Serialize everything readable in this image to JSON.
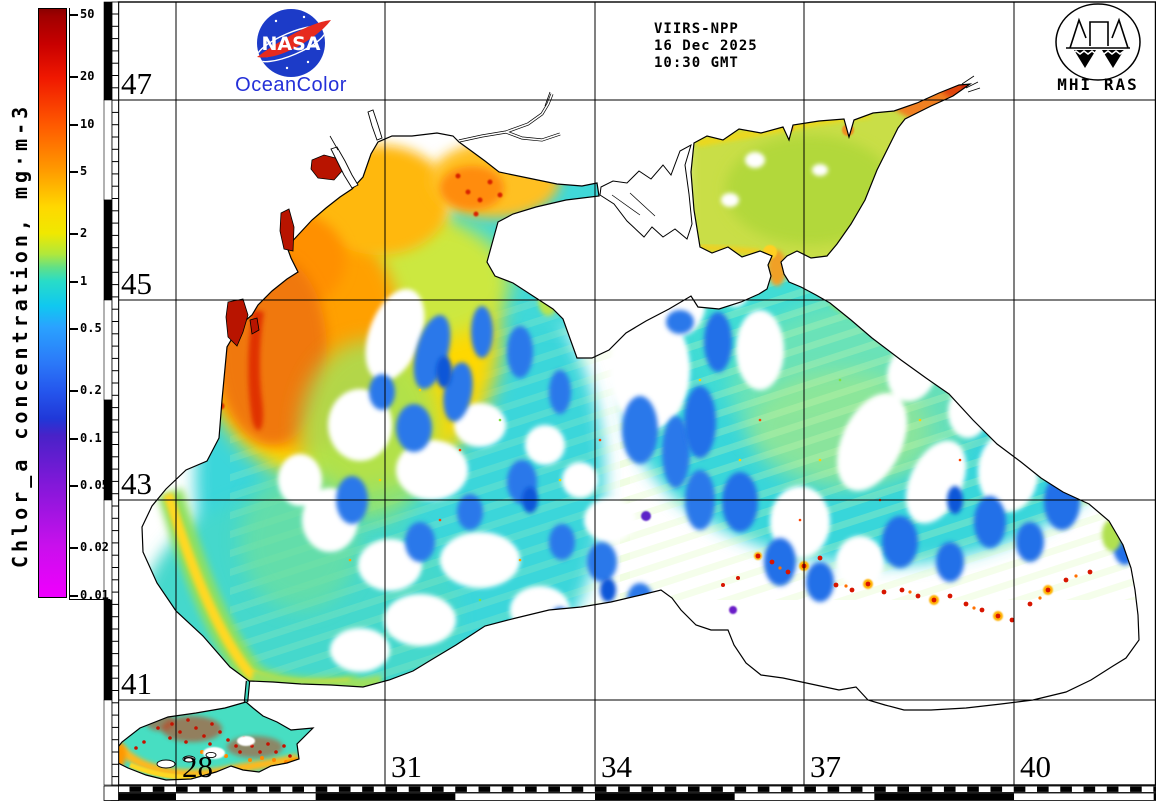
{
  "header": {
    "sensor": "VIIRS-NPP",
    "date": "16 Dec 2025",
    "time": "10:30 GMT"
  },
  "branding": {
    "nasa_text": "NASA",
    "oceancolor_label": "OceanColor",
    "mhi_label": "MHI RAS"
  },
  "colorbar": {
    "title": "Chlor_a concentration, mg·m-3",
    "units": "mg·m-3",
    "tick_labels": [
      "50",
      "20",
      "10",
      "5",
      "2",
      "1",
      "0.5",
      "0.2",
      "0.1",
      "0.05",
      "0.02",
      "0.01"
    ],
    "scale": "logarithmic"
  },
  "map": {
    "lat_labels": [
      "47",
      "45",
      "43",
      "41"
    ],
    "lon_labels": [
      "28",
      "31",
      "34",
      "37",
      "40"
    ]
  },
  "colors": {
    "nasa_blue": "#1c3bc8",
    "swoosh_red": "#e62a1e",
    "oceancolor_blue": "#2430d8",
    "ocean_cyan": "#3ad6da",
    "shelf_orange": "#ffa000",
    "bloom_red": "#d82000",
    "azov_yellow_green": "#c9de46",
    "deep_blue_patch": "#2a78ea",
    "low_chl_magenta": "#ee00ff"
  }
}
